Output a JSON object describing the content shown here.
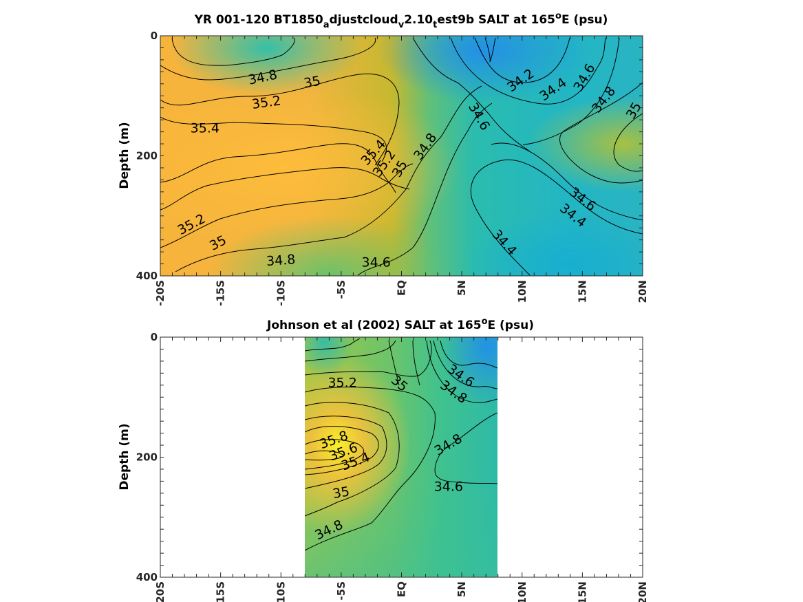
{
  "chart_data": [
    {
      "type": "heatmap",
      "subtype": "filled-contour",
      "title": {
        "prefix": "YR 001-120 BT1850",
        "sub1": "a",
        "mid1": "djustcloud",
        "sub2": "v",
        "mid2": "2.10",
        "sub3": "t",
        "mid3": "est9b SALT at 165",
        "sup": "o",
        "suffix": "E (psu)"
      },
      "ylabel": "Depth (m)",
      "xlim": [
        -20,
        20
      ],
      "ylim": [
        0,
        400
      ],
      "y_reversed": true,
      "colormap": "parula",
      "x_ticks": [
        {
          "value": -20,
          "label": "-20S"
        },
        {
          "value": -15,
          "label": "-15S"
        },
        {
          "value": -10,
          "label": "-10S"
        },
        {
          "value": -5,
          "label": "-5S"
        },
        {
          "value": 0,
          "label": "EQ"
        },
        {
          "value": 5,
          "label": "5N"
        },
        {
          "value": 10,
          "label": "10N"
        },
        {
          "value": 15,
          "label": "15N"
        },
        {
          "value": 20,
          "label": "20N"
        }
      ],
      "y_ticks": [
        {
          "value": 0,
          "label": "0"
        },
        {
          "value": 200,
          "label": "200"
        },
        {
          "value": 400,
          "label": "400"
        }
      ],
      "data_extent_x": [
        -20,
        20
      ],
      "contour_labels": [
        {
          "text": "34.8",
          "lat": -11.5,
          "depth": 70,
          "angle": -12
        },
        {
          "text": "35",
          "lat": -7.4,
          "depth": 78,
          "angle": -10
        },
        {
          "text": "35.2",
          "lat": -11.2,
          "depth": 112,
          "angle": -8
        },
        {
          "text": "35.4",
          "lat": -16.3,
          "depth": 155,
          "angle": 0
        },
        {
          "text": "35.4",
          "lat": -2.3,
          "depth": 195,
          "angle": -48
        },
        {
          "text": "35.2",
          "lat": -1.4,
          "depth": 213,
          "angle": -55
        },
        {
          "text": "35",
          "lat": -0.1,
          "depth": 222,
          "angle": -60
        },
        {
          "text": "34.8",
          "lat": 2.0,
          "depth": 185,
          "angle": -55
        },
        {
          "text": "35.2",
          "lat": -17.4,
          "depth": 315,
          "angle": -28
        },
        {
          "text": "35",
          "lat": -15.2,
          "depth": 346,
          "angle": -28
        },
        {
          "text": "34.8",
          "lat": -10.0,
          "depth": 375,
          "angle": -4
        },
        {
          "text": "34.6",
          "lat": -2.1,
          "depth": 378,
          "angle": 0
        },
        {
          "text": "34.2",
          "lat": 9.9,
          "depth": 75,
          "angle": -35
        },
        {
          "text": "34.4",
          "lat": 12.6,
          "depth": 90,
          "angle": -35
        },
        {
          "text": "34.6",
          "lat": 15.2,
          "depth": 70,
          "angle": -60
        },
        {
          "text": "34.8",
          "lat": 16.8,
          "depth": 107,
          "angle": -52
        },
        {
          "text": "35",
          "lat": 19.3,
          "depth": 125,
          "angle": -60
        },
        {
          "text": "34.6",
          "lat": 6.4,
          "depth": 135,
          "angle": 60
        },
        {
          "text": "34.6",
          "lat": 15.0,
          "depth": 273,
          "angle": 38
        },
        {
          "text": "34.4",
          "lat": 14.2,
          "depth": 300,
          "angle": 38
        },
        {
          "text": "34.4",
          "lat": 8.5,
          "depth": 345,
          "angle": 48
        }
      ]
    },
    {
      "type": "heatmap",
      "subtype": "filled-contour",
      "title": {
        "prefix": "Johnson et al (2002) SALT at 165",
        "sup": "o",
        "suffix": "E (psu)"
      },
      "ylabel": "Depth (m)",
      "xlim": [
        -20,
        20
      ],
      "ylim": [
        0,
        400
      ],
      "y_reversed": true,
      "colormap": "parula",
      "x_ticks": [
        {
          "value": -20,
          "label": "-20S"
        },
        {
          "value": -15,
          "label": "-15S"
        },
        {
          "value": -10,
          "label": "-10S"
        },
        {
          "value": -5,
          "label": "-5S"
        },
        {
          "value": 0,
          "label": "EQ"
        },
        {
          "value": 5,
          "label": "5N"
        },
        {
          "value": 10,
          "label": "10N"
        },
        {
          "value": 15,
          "label": "15N"
        },
        {
          "value": 20,
          "label": "20N"
        }
      ],
      "y_ticks": [
        {
          "value": 0,
          "label": "0"
        },
        {
          "value": 200,
          "label": "200"
        },
        {
          "value": 400,
          "label": "400"
        }
      ],
      "data_extent_x": [
        -8,
        8
      ],
      "contour_labels": [
        {
          "text": "35.2",
          "lat": -4.9,
          "depth": 77,
          "angle": 0
        },
        {
          "text": "35",
          "lat": -0.2,
          "depth": 78,
          "angle": 40
        },
        {
          "text": "34.6",
          "lat": 4.9,
          "depth": 65,
          "angle": 35
        },
        {
          "text": "34.8",
          "lat": 4.3,
          "depth": 92,
          "angle": 35
        },
        {
          "text": "35.8",
          "lat": -5.6,
          "depth": 172,
          "angle": -20
        },
        {
          "text": "35.6",
          "lat": -4.8,
          "depth": 192,
          "angle": -20
        },
        {
          "text": "35.4",
          "lat": -3.8,
          "depth": 208,
          "angle": -20
        },
        {
          "text": "34.8",
          "lat": 3.9,
          "depth": 180,
          "angle": -30
        },
        {
          "text": "35",
          "lat": -5.0,
          "depth": 260,
          "angle": -10
        },
        {
          "text": "34.6",
          "lat": 3.9,
          "depth": 250,
          "angle": 0
        },
        {
          "text": "34.8",
          "lat": -6.0,
          "depth": 322,
          "angle": -25
        }
      ]
    }
  ]
}
